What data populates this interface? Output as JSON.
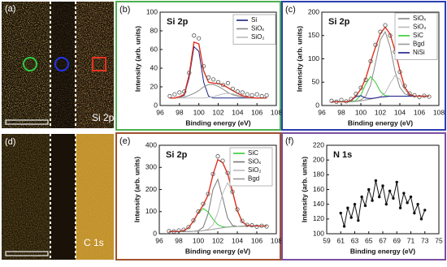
{
  "images": [
    {
      "label": "(a)",
      "caption": "Si 2p"
    },
    {
      "label": "(d)",
      "caption": "C 1s"
    }
  ],
  "chart_data": [
    {
      "type": "line",
      "panel_label": "(b)",
      "title": "Si 2p",
      "xlabel": "Binding energy (eV)",
      "ylabel": "Intensity (arb. units)",
      "xlim": [
        96,
        108
      ],
      "xticks": [
        96,
        98,
        100,
        102,
        104,
        106,
        108
      ],
      "ylim": [
        0,
        100
      ],
      "yticks": [
        0,
        20,
        40,
        60,
        80,
        100
      ],
      "grid": false,
      "legend": "upper right",
      "x": [
        97,
        97.5,
        98,
        98.5,
        99,
        99.5,
        100,
        100.5,
        101,
        101.5,
        102,
        102.5,
        103,
        103.5,
        104,
        104.5,
        105,
        105.5,
        106,
        106.5,
        107
      ],
      "series": [
        {
          "mode": "markers",
          "color": "#555555",
          "values": [
            10,
            12,
            14,
            15,
            35,
            75,
            72,
            42,
            30,
            28,
            25,
            22,
            24,
            18,
            15,
            14,
            12,
            11,
            12,
            10,
            11
          ]
        },
        {
          "mode": "line",
          "color": "#e0301e",
          "values": [
            8,
            8,
            9.4,
            12,
            33,
            68,
            66,
            37,
            25,
            24,
            23.5,
            22,
            19,
            16,
            13,
            10.5,
            9.1,
            8.4,
            8,
            8,
            8
          ]
        },
        {
          "name": "Si",
          "mode": "line",
          "color": "#1a237e",
          "values": [
            8,
            8,
            9,
            11,
            30,
            63,
            58,
            25,
            10,
            8,
            8,
            8,
            8,
            8,
            8,
            8,
            8,
            8,
            8,
            8,
            8
          ]
        },
        {
          "name": "SiOₓ",
          "mode": "line",
          "color": "#888888",
          "values": [
            8,
            8,
            8.4,
            9,
            10.8,
            13,
            16,
            20,
            22.5,
            22.5,
            20.5,
            17.5,
            14,
            11.5,
            10,
            9,
            8.4,
            8.2,
            8,
            8,
            8
          ]
        },
        {
          "name": "SiO₂",
          "mode": "line",
          "color": "#bbbbbb",
          "values": [
            8,
            8,
            8,
            8,
            8,
            8,
            8,
            8,
            8.7,
            9.5,
            11,
            12.5,
            13,
            12.5,
            11,
            9.5,
            8.7,
            8.2,
            8,
            8,
            8
          ]
        }
      ]
    },
    {
      "type": "line",
      "panel_label": "(c)",
      "title": "Si 2p",
      "xlabel": "Binding energy (eV)",
      "ylabel": "Intensity (arb. units)",
      "xlim": [
        96,
        108
      ],
      "xticks": [
        96,
        98,
        100,
        102,
        104,
        106,
        108
      ],
      "ylim": [
        0,
        200
      ],
      "yticks": [
        0,
        50,
        100,
        150,
        200
      ],
      "grid": false,
      "legend": "upper right",
      "x": [
        97,
        97.5,
        98,
        98.5,
        99,
        99.5,
        100,
        100.5,
        101,
        101.5,
        102,
        102.5,
        103,
        103.5,
        104,
        104.5,
        105,
        105.5,
        106,
        106.5,
        107
      ],
      "series": [
        {
          "mode": "markers",
          "color": "#555555",
          "values": [
            10,
            8,
            12,
            9,
            14,
            25,
            38,
            55,
            95,
            130,
            158,
            172,
            150,
            115,
            72,
            42,
            26,
            22,
            18,
            21,
            19
          ]
        },
        {
          "mode": "line",
          "color": "#e0301e",
          "values": [
            8,
            8,
            8,
            8,
            11,
            21,
            35,
            58,
            93,
            125,
            154,
            168,
            153,
            118,
            75,
            39,
            24,
            20,
            20,
            20,
            20
          ]
        },
        {
          "name": "SiOₓ",
          "mode": "line",
          "color": "#888888",
          "values": [
            8,
            8,
            8,
            8,
            8,
            9,
            12,
            20,
            44,
            91,
            141,
            158,
            126,
            74,
            39,
            25,
            21,
            20,
            20,
            20,
            20
          ]
        },
        {
          "name": "SiO₂",
          "mode": "line",
          "color": "#bbbbbb",
          "values": [
            8,
            8,
            8,
            8,
            8,
            9,
            10,
            12,
            14,
            16,
            19,
            27,
            47,
            64,
            56,
            34,
            23,
            20,
            20,
            20,
            20
          ]
        },
        {
          "name": "SiC",
          "mode": "line",
          "color": "#33cc33",
          "values": [
            8,
            8,
            8,
            8,
            8,
            11,
            22,
            46,
            62,
            50,
            30,
            21,
            20,
            20,
            20,
            20,
            20,
            20,
            20,
            20,
            20
          ]
        },
        {
          "name": "Bgd",
          "mode": "line",
          "color": "#999999",
          "values": [
            8,
            8,
            8,
            8,
            8,
            9,
            10,
            12,
            14,
            16,
            18,
            19,
            20,
            20,
            20,
            20,
            20,
            20,
            20,
            20,
            20
          ]
        },
        {
          "name": "NiSi",
          "mode": "line",
          "color": "#1a1a8c",
          "values": [
            8,
            8,
            8,
            8,
            11,
            19,
            21,
            16,
            15,
            16,
            18,
            19,
            20,
            20,
            20,
            20,
            20,
            20,
            20,
            20,
            20
          ]
        }
      ]
    },
    {
      "type": "line",
      "panel_label": "(e)",
      "title": "Si 2p",
      "xlabel": "Binding energy (eV)",
      "ylabel": "Intensity (arb. units)",
      "xlim": [
        96,
        108
      ],
      "xticks": [
        96,
        98,
        100,
        102,
        104,
        106,
        108
      ],
      "ylim": [
        0,
        400
      ],
      "yticks": [
        0,
        100,
        200,
        300,
        400
      ],
      "grid": false,
      "legend": "upper right",
      "x": [
        97,
        97.5,
        98,
        98.5,
        99,
        99.5,
        100,
        100.5,
        101,
        101.5,
        102,
        102.5,
        103,
        103.5,
        104,
        104.5,
        105,
        105.5,
        106,
        106.5,
        107
      ],
      "series": [
        {
          "mode": "markers",
          "color": "#555555",
          "values": [
            12,
            10,
            15,
            18,
            30,
            60,
            100,
            135,
            180,
            270,
            350,
            330,
            275,
            190,
            110,
            58,
            40,
            38,
            32,
            36,
            33
          ]
        },
        {
          "mode": "line",
          "color": "#e0301e",
          "values": [
            10,
            10,
            10,
            14,
            27,
            57,
            96,
            129,
            175,
            266,
            335,
            321,
            272,
            193,
            105,
            54,
            38,
            35,
            35,
            35,
            35
          ]
        },
        {
          "name": "SiC",
          "mode": "line",
          "color": "#33cc33",
          "values": [
            10,
            10,
            10,
            14,
            27,
            57,
            94,
            114,
            99,
            66,
            41,
            31,
            30,
            32,
            33,
            34,
            35,
            35,
            35,
            35,
            35
          ]
        },
        {
          "name": "SiOₓ",
          "mode": "line",
          "color": "#777777",
          "values": [
            10,
            10,
            10,
            10,
            10,
            11,
            14,
            29,
            90,
            200,
            246,
            162,
            72,
            38,
            33,
            34,
            35,
            35,
            35,
            35,
            35
          ]
        },
        {
          "name": "SiO₂",
          "mode": "line",
          "color": "#bbbbbb",
          "values": [
            10,
            10,
            10,
            10,
            10,
            11,
            12,
            14,
            20,
            40,
            96,
            182,
            230,
            187,
            105,
            54,
            38,
            35,
            35,
            35,
            35
          ]
        },
        {
          "name": "Bgd",
          "mode": "line",
          "color": "#999999",
          "values": [
            10,
            10,
            10,
            10,
            10,
            11,
            12,
            14,
            17,
            20,
            24,
            27,
            30,
            32,
            33,
            34,
            35,
            35,
            35,
            35,
            35
          ]
        }
      ]
    },
    {
      "type": "line",
      "panel_label": "(f)",
      "title": "N 1s",
      "xlabel": "Binding energy (eV)",
      "ylabel": "Intensity (arb. units)",
      "xlim": [
        59,
        75
      ],
      "xticks": [
        59,
        61,
        63,
        65,
        67,
        69,
        71,
        73,
        75
      ],
      "ylim": [
        100,
        220
      ],
      "yticks": [
        100,
        120,
        140,
        160,
        180,
        200,
        220
      ],
      "grid": false,
      "x": [
        61,
        61.5,
        62,
        62.5,
        63,
        63.5,
        64,
        64.5,
        65,
        65.5,
        66,
        66.5,
        67,
        67.5,
        68,
        68.5,
        69,
        69.5,
        70,
        70.5,
        71,
        71.5,
        72,
        72.5,
        73
      ],
      "series": [
        {
          "mode": "linemarkers",
          "color": "#111111",
          "values": [
            128,
            110,
            135,
            122,
            140,
            118,
            150,
            138,
            160,
            145,
            172,
            150,
            165,
            140,
            158,
            148,
            170,
            135,
            155,
            142,
            150,
            128,
            140,
            120,
            132
          ]
        }
      ]
    }
  ]
}
